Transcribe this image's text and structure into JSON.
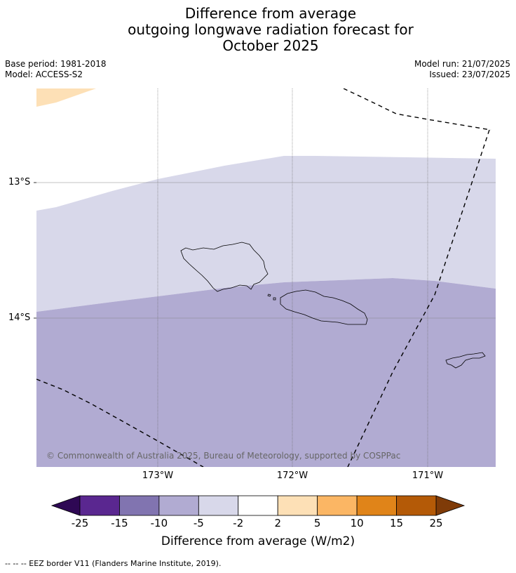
{
  "title": {
    "line1": "Difference from average",
    "line2": "outgoing longwave radiation forecast for",
    "line3": "October 2025"
  },
  "meta": {
    "base_period": "Base period: 1981-2018",
    "model": "Model: ACCESS-S2",
    "model_run": "Model run: 21/07/2025",
    "issued": "Issued: 23/07/2025"
  },
  "map": {
    "lat_labels": [
      "13°S",
      "14°S"
    ],
    "lon_labels": [
      "173°W",
      "172°W",
      "171°W"
    ],
    "copyright": "© Commonwealth of Australia 2025, Bureau of Meteorology, supported by COSPPac",
    "regions": [
      {
        "name": "anomaly 2 to 5",
        "color": "#fde0b6"
      },
      {
        "name": "anomaly -5 to -2",
        "color": "#d8d8ea"
      },
      {
        "name": "anomaly -10 to -5",
        "color": "#b1abd2"
      }
    ]
  },
  "colorbar": {
    "title": "Difference from average (W/m2)",
    "ticks": [
      "-25",
      "-15",
      "-10",
      "-5",
      "-2",
      "2",
      "5",
      "10",
      "15",
      "25"
    ],
    "colors": [
      "#5a2790",
      "#8174b0",
      "#b1abd2",
      "#d8d8ea",
      "#ffffff",
      "#fde0b6",
      "#fbb664",
      "#e08419",
      "#b45a07"
    ],
    "extend_low_color": "#2e0854",
    "extend_high_color": "#7f3b08"
  },
  "footnote": "-- -- -- EEZ border V11 (Flanders Marine Institute, 2019)."
}
